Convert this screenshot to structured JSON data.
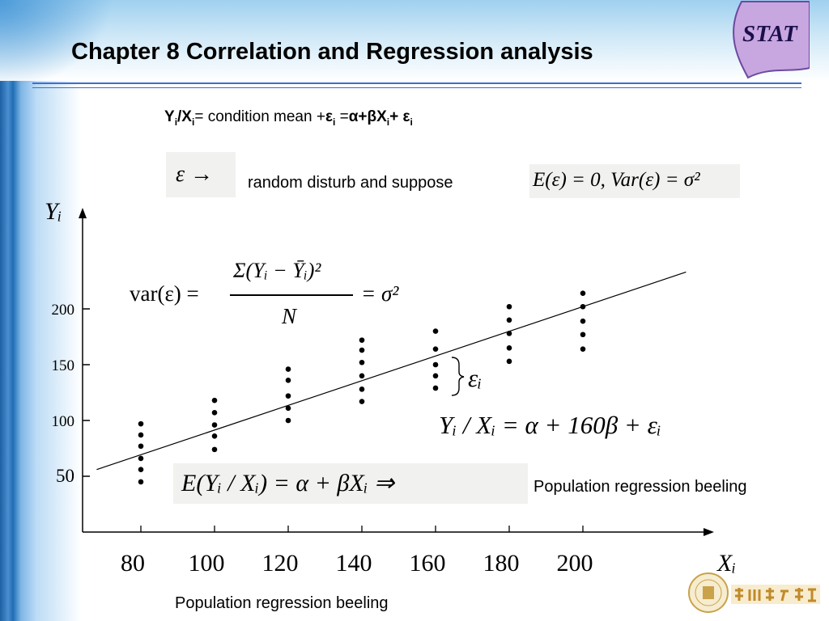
{
  "title": "Chapter 8 Correlation and Regression analysis",
  "badge": "STAT",
  "model_line": {
    "y": "Y",
    "sub_i": "i",
    "slash_x": "/X",
    "condition": "= condition mean +",
    "eps": "ε",
    "equals": " =",
    "alpha_beta": "α+βX",
    "plus_eps": "+ ε"
  },
  "epsilon_arrow": "ε →",
  "random_disturb": "random disturb and suppose",
  "expectation_formula": "E(ε) = 0, Var(ε) = σ²",
  "variance_formula": {
    "lhs": "var(ε) =",
    "numerator": "Σ(Yᵢ − Ȳᵢ)²",
    "denominator": "N",
    "rhs": "= σ²"
  },
  "epsilon_i_label": "εᵢ",
  "conditional_equation": "Yᵢ / Xᵢ = α + 160β + εᵢ",
  "regression_formula": "E(Yᵢ / Xᵢ) = α + βXᵢ ⇒",
  "population_label_right": "Population regression beeling",
  "population_label_bottom": "Population regression beeling",
  "chart_data": {
    "type": "scatter",
    "y_axis_label": "Yᵢ",
    "x_axis_label": "Xᵢ",
    "y_ticks": [
      "200",
      "150",
      "100",
      "50"
    ],
    "x_ticks": [
      "80",
      "100",
      "120",
      "140",
      "160",
      "180",
      "200"
    ],
    "series": [
      {
        "x": 80,
        "y": [
          97,
          87,
          77,
          66,
          56,
          45
        ]
      },
      {
        "x": 100,
        "y": [
          118,
          107,
          96,
          86,
          74
        ]
      },
      {
        "x": 120,
        "y": [
          146,
          136,
          122,
          111,
          100
        ]
      },
      {
        "x": 140,
        "y": [
          172,
          163,
          152,
          140,
          128,
          117
        ]
      },
      {
        "x": 160,
        "y": [
          180,
          164,
          150,
          140,
          129
        ]
      },
      {
        "x": 180,
        "y": [
          202,
          190,
          178,
          165,
          153
        ]
      },
      {
        "x": 200,
        "y": [
          214,
          202,
          189,
          177,
          164
        ]
      }
    ],
    "regression_line": {
      "x_start": 68,
      "y_start": 56,
      "x_end": 228,
      "y_end": 233
    },
    "colors": {
      "points": "#000000",
      "line": "#000000"
    }
  }
}
